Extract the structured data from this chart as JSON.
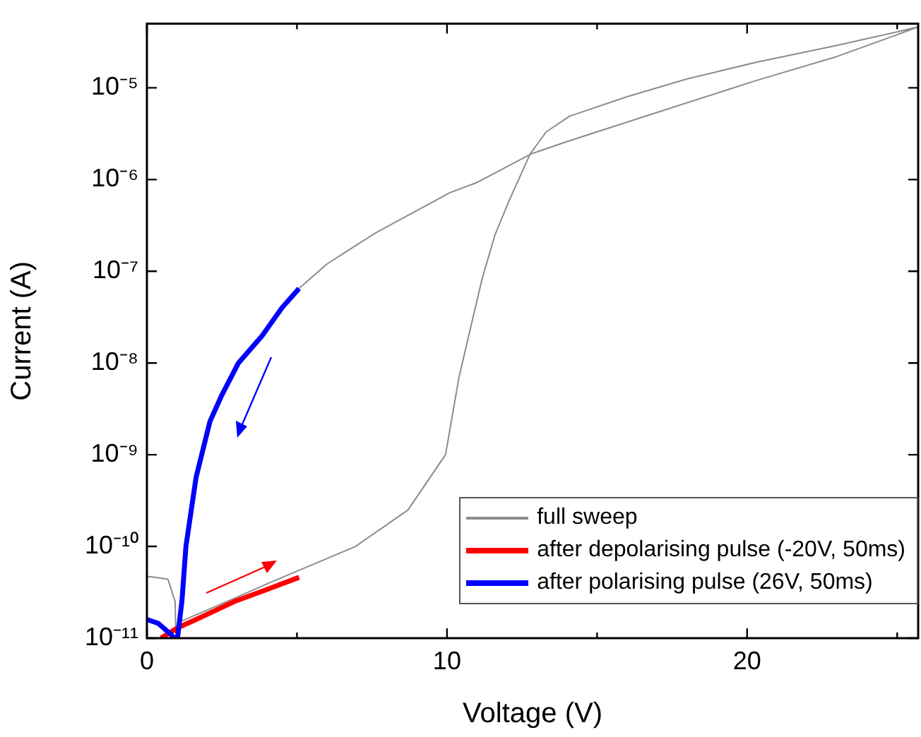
{
  "chart_data": {
    "type": "line",
    "xlabel": "Voltage (V)",
    "ylabel": "Current (A)",
    "log": "y",
    "grid": false,
    "legend": "bottom right",
    "marker": "none",
    "line_style": "solid",
    "xlim": [
      0,
      25.7
    ],
    "xticks": [
      0,
      {
        "value": 5,
        "label": null
      },
      10,
      {
        "value": 15,
        "label": null
      },
      20,
      {
        "value": 25,
        "label": null
      }
    ],
    "ylim": [
      1e-11,
      5e-05
    ],
    "yticks": [
      {
        "value": 1e-11,
        "label": "10⁻¹¹"
      },
      {
        "value": 1e-10,
        "label": "10⁻¹⁰"
      },
      {
        "value": 1e-09,
        "label": "10⁻⁹"
      },
      {
        "value": 1e-08,
        "label": "10⁻⁸"
      },
      {
        "value": 1e-07,
        "label": "10⁻⁷"
      },
      {
        "value": 1e-06,
        "label": "10⁻⁶"
      },
      {
        "value": 1e-05,
        "label": "10⁻⁵"
      }
    ],
    "series": [
      {
        "name": "full sweep",
        "color": "#8c8c8c",
        "x": [
          0.97,
          1.08,
          1.97,
          3,
          4,
          5.07,
          6.95,
          8.7,
          9.95,
          10.4,
          10.9,
          11.17,
          11.6,
          12.07,
          12.77,
          13.3,
          14.08,
          16,
          18,
          20.3,
          23,
          25.7,
          23,
          20.3,
          17,
          14,
          12.8,
          11,
          10.1,
          7.6,
          6,
          5.07,
          4,
          3.05,
          2.1,
          1.64,
          1.3,
          1.17,
          1.02,
          0.97,
          0.94,
          0.7,
          0.1,
          0
        ],
        "values": [
          1e-11,
          1.5e-11,
          2e-11,
          2.8e-11,
          3.9e-11,
          5.5e-11,
          1e-10,
          2.5e-10,
          1e-09,
          7e-09,
          3.5e-08,
          8.3e-08,
          2.5e-07,
          5.9e-07,
          1.9e-06,
          3.3e-06,
          4.9e-06,
          8e-06,
          1.25e-05,
          1.9e-05,
          2.9e-05,
          4.6e-05,
          2.2e-05,
          1.2e-05,
          5.4e-06,
          2.6e-06,
          1.9e-06,
          9.3e-07,
          7.2e-07,
          2.6e-07,
          1.2e-07,
          6.5e-08,
          null,
          null,
          null,
          null,
          null,
          null,
          1e-11,
          1e-11,
          2.5e-11,
          4.4e-11,
          4.7e-11,
          4.7e-11
        ]
      },
      {
        "name": "after depolarising pulse (-20V, 50ms)",
        "color": "#ff0000",
        "x": [
          0.47,
          1.03,
          1.64,
          2.9,
          4,
          5.07
        ],
        "values": [
          1e-11,
          1.3e-11,
          1.6e-11,
          2.5e-11,
          3.4e-11,
          4.6e-11
        ]
      },
      {
        "name": "after polarising pulse (26V, 50ms)",
        "color": "#0000ff",
        "x": [
          5.07,
          4.5,
          3.85,
          3.05,
          2.5,
          2.1,
          1.64,
          1.3,
          1.17,
          1.02,
          0.9,
          0.8,
          0.38,
          0
        ],
        "values": [
          6.5e-08,
          4e-08,
          2e-08,
          1e-08,
          4.5e-09,
          2.3e-09,
          5.7e-10,
          1e-10,
          2.6e-11,
          1e-11,
          1e-11,
          1.1e-11,
          1.45e-11,
          1.6e-11
        ]
      }
    ]
  }
}
